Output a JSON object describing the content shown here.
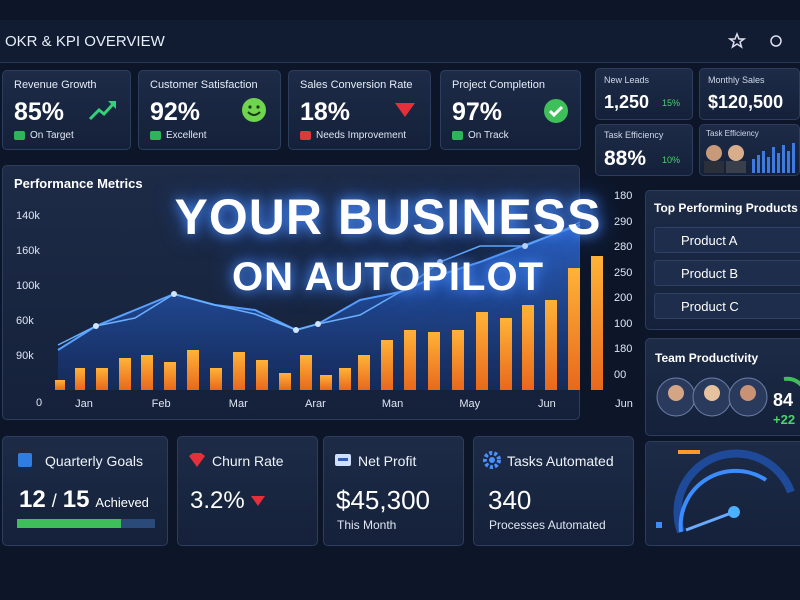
{
  "header": {
    "title": "OKR & KPI OVERVIEW"
  },
  "kpis": [
    {
      "label": "Revenue Growth",
      "value": "85%",
      "status": "On Target"
    },
    {
      "label": "Customer Satisfaction",
      "value": "92%",
      "status": "Excellent"
    },
    {
      "label": "Sales Conversion Rate",
      "value": "18%",
      "status": "Needs Improvement"
    },
    {
      "label": "Project Completion",
      "value": "97%",
      "status": "On Track"
    }
  ],
  "mini": [
    {
      "label": "New Leads",
      "value": "1,250",
      "change": "15%"
    },
    {
      "label": "Monthly Sales",
      "value": "$120,500"
    },
    {
      "label": "Task Efficiency",
      "value": "88%",
      "change": "10%"
    },
    {
      "label": "Task Efficiency"
    }
  ],
  "performance": {
    "title": "Performance Metrics",
    "left_labels": [
      "140k",
      "160k",
      "100k",
      "60k",
      "90k",
      "0"
    ],
    "right_labels": [
      "180",
      "290",
      "280",
      "250",
      "200",
      "100",
      "180",
      "00"
    ],
    "x_labels": [
      "Jan",
      "Feb",
      "Mar",
      "Arar",
      "Man",
      "May",
      "Jun",
      "Jun"
    ]
  },
  "headline": [
    "YOUR BUSINESS",
    "ON AUTOPILOT"
  ],
  "products": {
    "title": "Top Performing Products",
    "items": [
      "Product A",
      "Product B",
      "Product C"
    ]
  },
  "team": {
    "title": "Team Productivity",
    "value": "84",
    "change": "+22"
  },
  "bottom": [
    {
      "label": "Quarterly Goals",
      "value": "12",
      "sep": "/",
      "total": "15",
      "note": "Achieved"
    },
    {
      "label": "Churn Rate",
      "value": "3.2%"
    },
    {
      "label": "Net Profit",
      "value": "$45,300",
      "note": "This Month"
    },
    {
      "label": "Tasks Automated",
      "value": "340",
      "note": "Processes Automated"
    }
  ]
}
